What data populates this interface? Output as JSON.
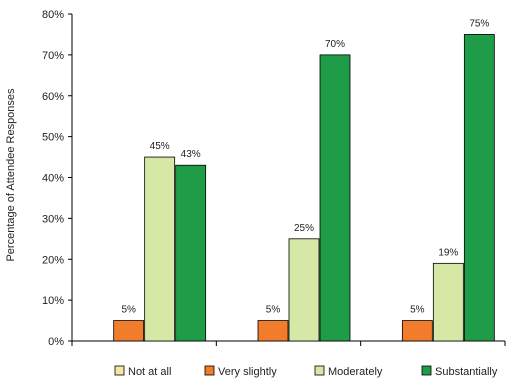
{
  "chart_data": {
    "type": "bar",
    "categories": [
      "",
      "",
      ""
    ],
    "series": [
      {
        "name": "Not at all",
        "color": "#f5e6a3",
        "values": [
          0,
          0,
          0
        ],
        "labels": [
          "",
          "",
          ""
        ]
      },
      {
        "name": "Very slightly",
        "color": "#f07c2c",
        "values": [
          5,
          5,
          5
        ],
        "labels": [
          "5%",
          "5%",
          "5%"
        ]
      },
      {
        "name": "Moderately",
        "color": "#d6e8a6",
        "values": [
          45,
          25,
          19
        ],
        "labels": [
          "45%",
          "25%",
          "19%"
        ]
      },
      {
        "name": "Substantially",
        "color": "#1f9c47",
        "values": [
          43,
          70,
          75
        ],
        "labels": [
          "43%",
          "70%",
          "75%"
        ]
      }
    ],
    "ylabel": "Percentage of Attendee Responses",
    "xlabel": "",
    "title": "",
    "ylim": [
      0,
      80
    ],
    "yticks": [
      "0%",
      "10%",
      "20%",
      "30%",
      "40%",
      "50%",
      "60%",
      "70%",
      "80%"
    ],
    "grid": false,
    "legend_position": "bottom"
  }
}
